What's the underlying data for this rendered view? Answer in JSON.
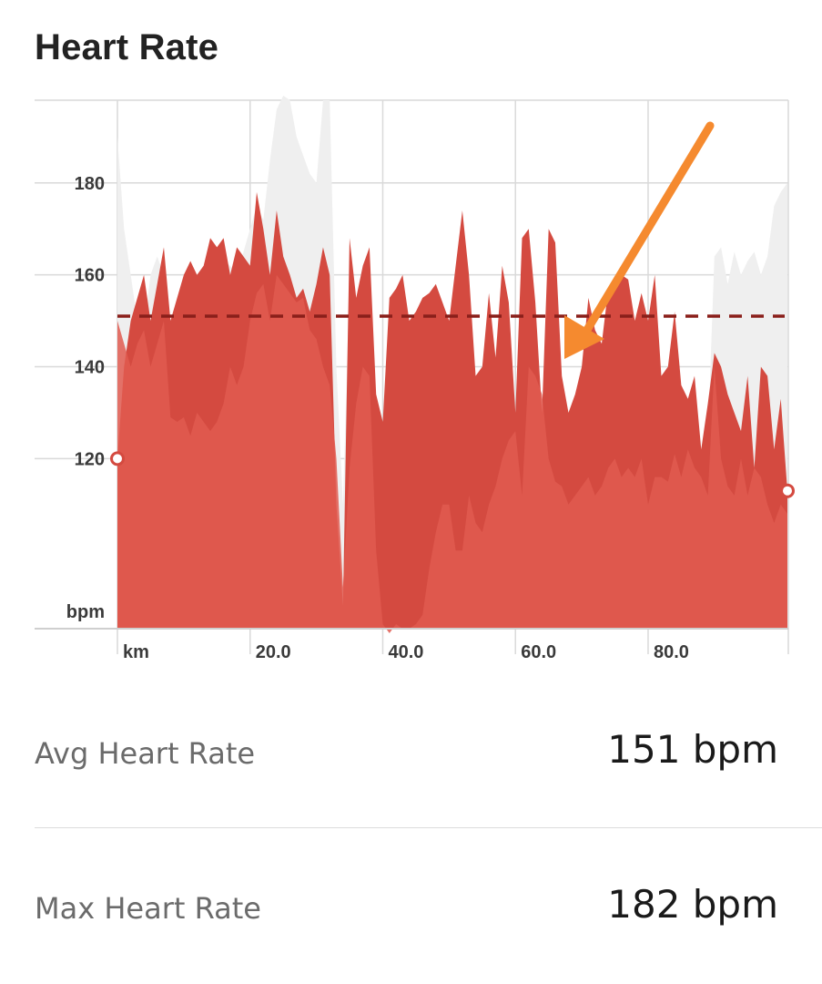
{
  "title": "Heart Rate",
  "chart_data": {
    "type": "area",
    "ylabel": "bpm",
    "xlabel": "km",
    "ylim": [
      83,
      198
    ],
    "xlim": [
      0,
      100
    ],
    "y_ticks": [
      "180",
      "160",
      "140",
      "120"
    ],
    "y_tick_values": [
      180,
      160,
      140,
      120
    ],
    "x_ticks": [
      "20.0",
      "40.0",
      "60.0",
      "80.0"
    ],
    "x_tick_values": [
      20,
      40,
      60,
      80
    ],
    "grid": true,
    "average_line": 151,
    "series": [
      {
        "color": "#d44a40",
        "x": [
          0,
          1,
          2,
          3,
          4,
          5,
          6,
          7,
          8,
          9,
          10,
          11,
          12,
          13,
          14,
          15,
          16,
          17,
          18,
          19,
          20,
          21,
          22,
          23,
          24,
          25,
          26,
          27,
          28,
          29,
          30,
          31,
          32,
          33,
          34,
          35,
          36,
          37,
          38,
          39,
          40,
          41,
          42,
          43,
          44,
          45,
          46,
          47,
          48,
          49,
          50,
          51,
          52,
          53,
          54,
          55,
          56,
          57,
          58,
          59,
          60,
          61,
          62,
          63,
          64,
          65,
          66,
          67,
          68,
          69,
          70,
          71,
          72,
          73,
          74,
          75,
          76,
          77,
          78,
          79,
          80,
          81,
          82,
          83,
          84,
          85,
          86,
          87,
          88,
          89,
          90,
          91,
          92,
          93,
          94,
          95,
          96,
          97,
          98,
          99,
          100,
          101
        ],
        "values": [
          120,
          140,
          150,
          155,
          160,
          150,
          158,
          166,
          150,
          155,
          160,
          163,
          160,
          162,
          168,
          166,
          168,
          160,
          166,
          164,
          162,
          178,
          170,
          160,
          174,
          164,
          160,
          155,
          157,
          152,
          158,
          166,
          160,
          110,
          88,
          168,
          155,
          162,
          166,
          134,
          128,
          155,
          157,
          160,
          150,
          152,
          155,
          156,
          158,
          154,
          150,
          162,
          174,
          160,
          138,
          140,
          156,
          142,
          162,
          154,
          130,
          168,
          170,
          154,
          130,
          170,
          167,
          138,
          130,
          134,
          140,
          155,
          148,
          145,
          157,
          158,
          160,
          159,
          150,
          156,
          150,
          160,
          138,
          140,
          152,
          136,
          133,
          138,
          122,
          132,
          143,
          140,
          134,
          130,
          126,
          138,
          118,
          140,
          138,
          122,
          133,
          113
        ]
      },
      {
        "color": "#e05b50",
        "x": [
          0,
          1,
          2,
          3,
          4,
          5,
          6,
          7,
          8,
          9,
          10,
          11,
          12,
          13,
          14,
          15,
          16,
          17,
          18,
          19,
          20,
          21,
          22,
          23,
          24,
          25,
          26,
          27,
          28,
          29,
          30,
          31,
          32,
          33,
          34,
          35,
          36,
          37,
          38,
          39,
          40,
          41,
          42,
          43,
          44,
          45,
          46,
          47,
          48,
          49,
          50,
          51,
          52,
          53,
          54,
          55,
          56,
          57,
          58,
          59,
          60,
          61,
          62,
          63,
          64,
          65,
          66,
          67,
          68,
          69,
          70,
          71,
          72,
          73,
          74,
          75,
          76,
          77,
          78,
          79,
          80,
          81,
          82,
          83,
          84,
          85,
          86,
          87,
          88,
          89,
          90,
          91,
          92,
          93,
          94,
          95,
          96,
          97,
          98,
          99,
          100,
          101
        ],
        "values": [
          150,
          145,
          140,
          145,
          148,
          140,
          145,
          150,
          129,
          128,
          129,
          125,
          130,
          128,
          126,
          128,
          132,
          140,
          136,
          140,
          150,
          156,
          158,
          150,
          160,
          158,
          156,
          154,
          155,
          148,
          146,
          140,
          136,
          120,
          92,
          118,
          132,
          140,
          138,
          100,
          84,
          82,
          84,
          83,
          83,
          84,
          86,
          96,
          104,
          110,
          110,
          100,
          100,
          112,
          106,
          104,
          110,
          114,
          120,
          124,
          126,
          112,
          140,
          138,
          134,
          120,
          115,
          114,
          110,
          112,
          114,
          116,
          112,
          114,
          118,
          120,
          116,
          118,
          116,
          120,
          110,
          116,
          116,
          115,
          121,
          116,
          122,
          118,
          116,
          112,
          140,
          120,
          114,
          112,
          120,
          112,
          118,
          116,
          110,
          106,
          110,
          108
        ]
      },
      {
        "color": "#efefef",
        "x": [
          0,
          1,
          2,
          3,
          4,
          5,
          6,
          7,
          8,
          9,
          10,
          11,
          12,
          13,
          14,
          15,
          16,
          17,
          18,
          19,
          20,
          21,
          22,
          23,
          24,
          25,
          26,
          27,
          28,
          29,
          30,
          31,
          32,
          33,
          34,
          35,
          36,
          37,
          38,
          39,
          40,
          41,
          42,
          43,
          44,
          45,
          46,
          47,
          48,
          49,
          50,
          51,
          52,
          53,
          54,
          55,
          56,
          57,
          58,
          59,
          60,
          61,
          62,
          63,
          64,
          65,
          66,
          67,
          68,
          69,
          70,
          71,
          72,
          73,
          74,
          75,
          76,
          77,
          78,
          79,
          80,
          81,
          82,
          83,
          84,
          85,
          86,
          87,
          88,
          89,
          90,
          91,
          92,
          93,
          94,
          95,
          96,
          97,
          98,
          99,
          100,
          101
        ],
        "values": [
          190,
          170,
          160,
          150,
          148,
          160,
          164,
          160,
          150,
          152,
          155,
          158,
          156,
          160,
          162,
          160,
          163,
          162,
          160,
          165,
          170,
          175,
          172,
          185,
          196,
          199,
          198,
          190,
          186,
          182,
          180,
          198,
          198,
          140,
          110,
          160,
          150,
          158,
          160,
          132,
          120,
          140,
          148,
          150,
          145,
          148,
          150,
          152,
          150,
          146,
          144,
          155,
          160,
          150,
          132,
          128,
          150,
          140,
          150,
          148,
          120,
          150,
          155,
          145,
          120,
          135,
          130,
          132,
          125,
          130,
          132,
          140,
          136,
          135,
          140,
          142,
          140,
          138,
          136,
          138,
          130,
          140,
          130,
          132,
          136,
          128,
          126,
          130,
          118,
          124,
          164,
          166,
          158,
          165,
          160,
          163,
          165,
          160,
          164,
          175,
          178,
          180
        ]
      }
    ]
  },
  "stats": {
    "avg_label": "Avg Heart Rate",
    "avg_value": "151 bpm",
    "max_label": "Max Heart Rate",
    "max_value": "182 bpm"
  },
  "colors": {
    "avg_line": "#8a1f1a",
    "annotation_arrow": "#f58a2f",
    "marker_ring": "#d44a40"
  }
}
